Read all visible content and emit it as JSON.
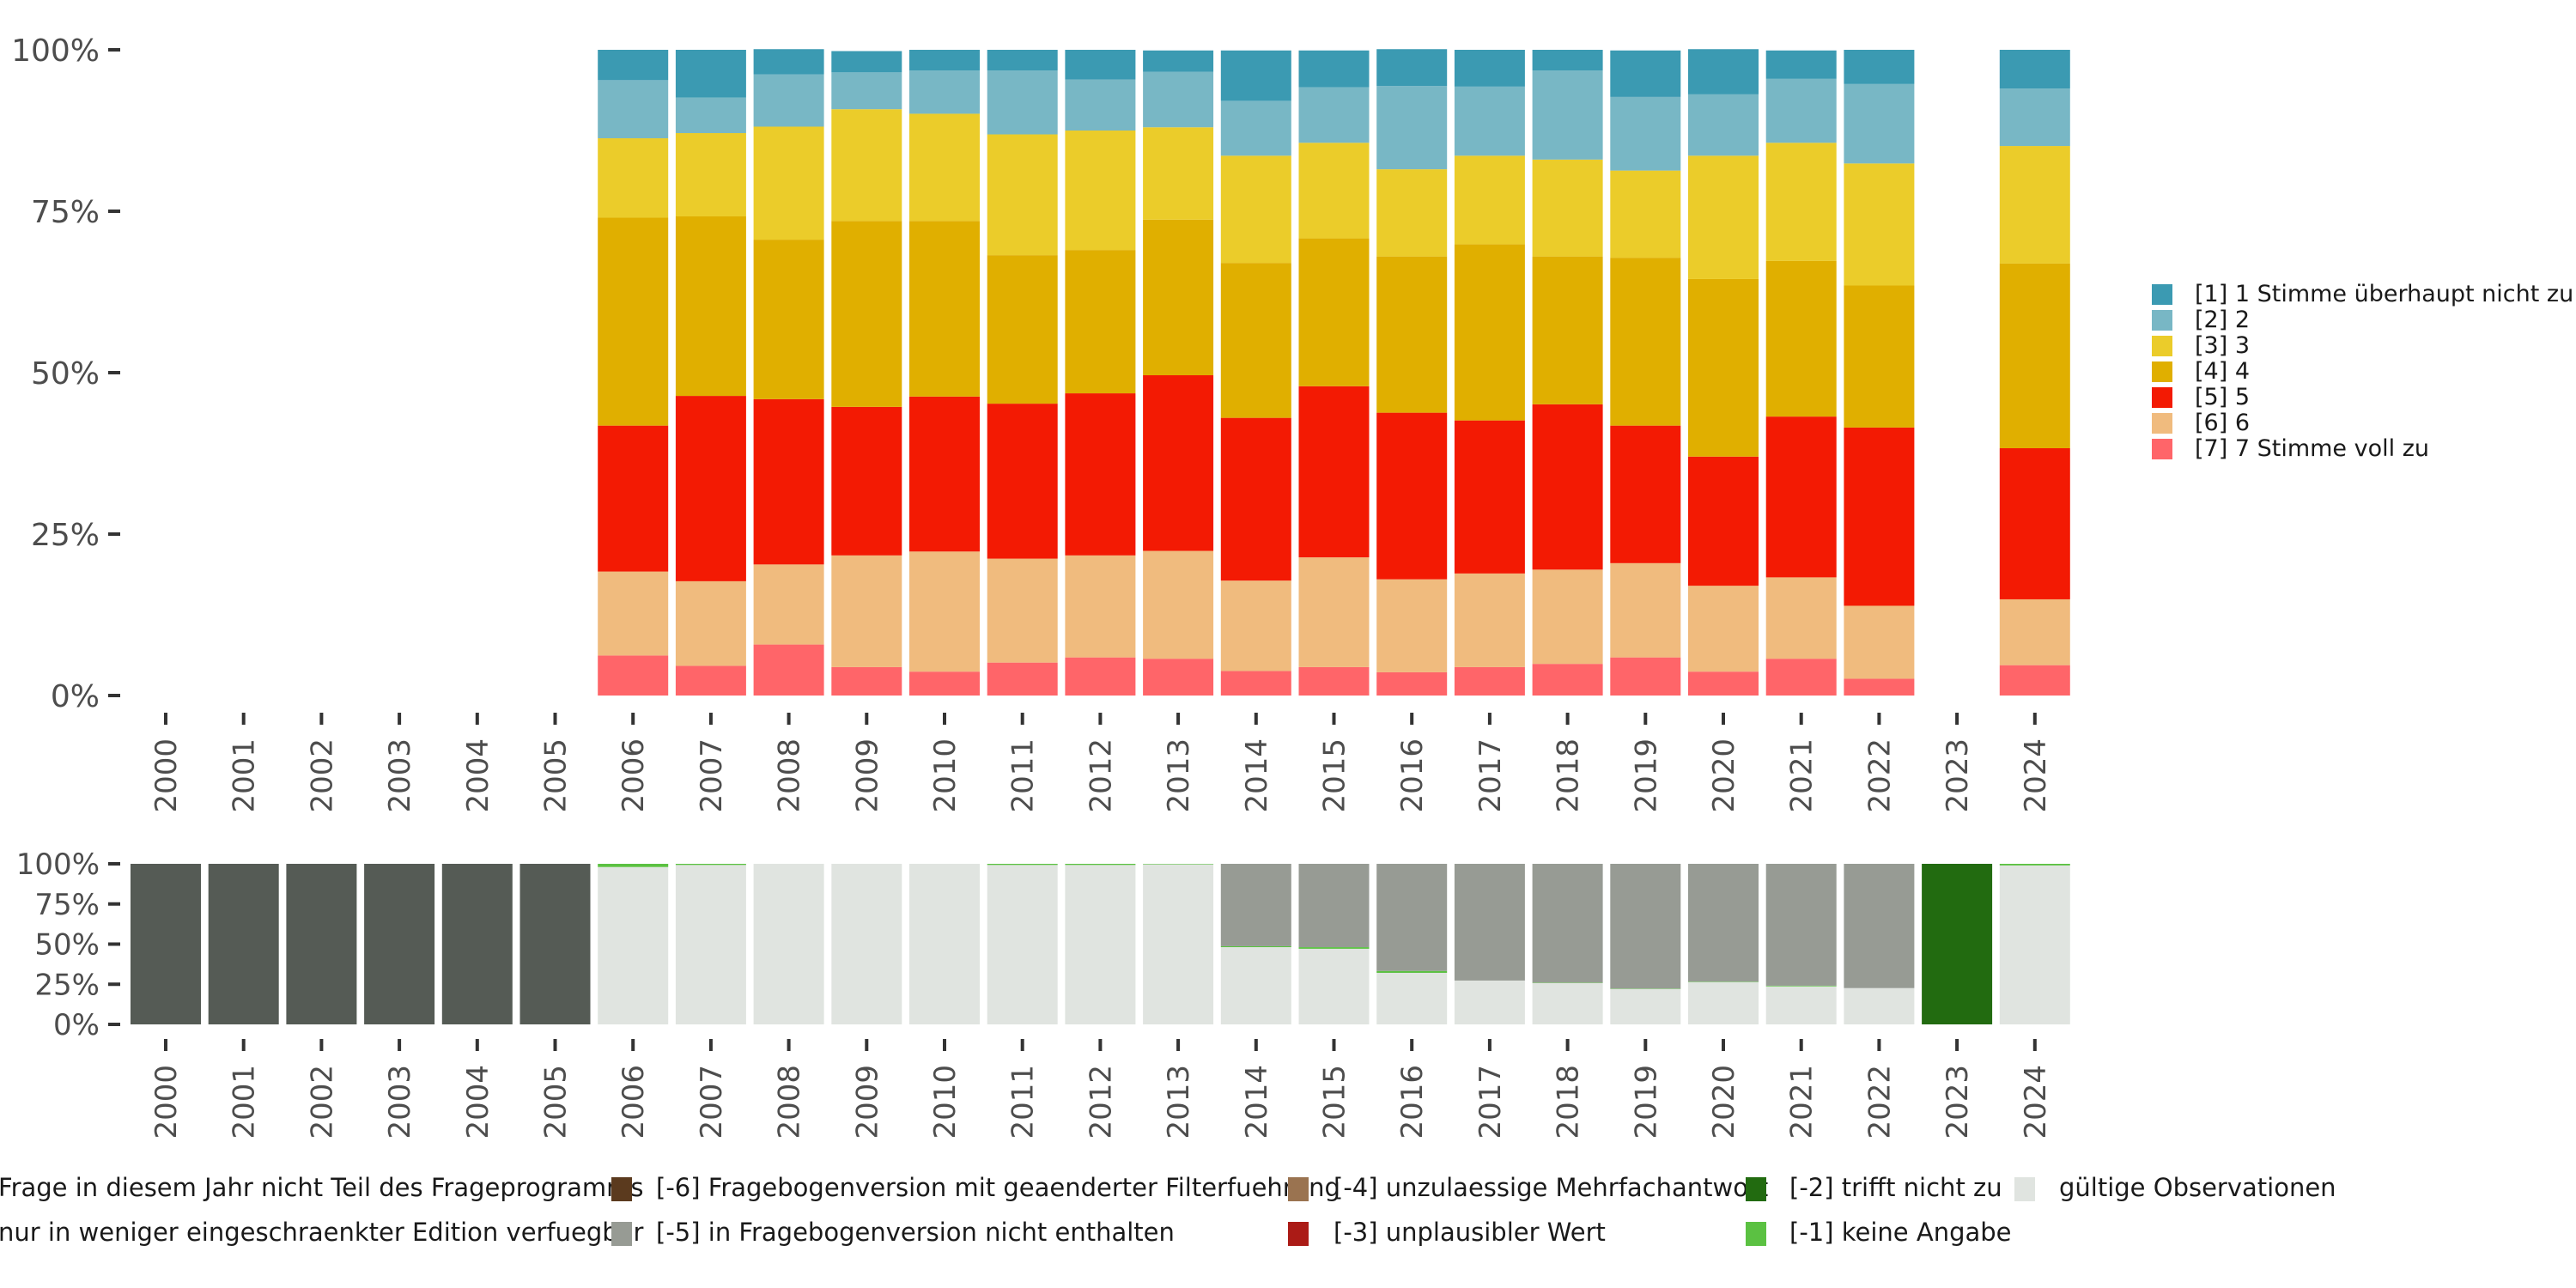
{
  "chart_data": [
    {
      "type": "bar",
      "stacked": true,
      "title": "",
      "xlabel": "",
      "ylabel": "",
      "ylim": [
        0,
        100
      ],
      "yticks": [
        "0%",
        "25%",
        "50%",
        "75%",
        "100%"
      ],
      "ytick_values": [
        0,
        25,
        50,
        75,
        100
      ],
      "categories": [
        "2000",
        "2001",
        "2002",
        "2003",
        "2004",
        "2005",
        "2006",
        "2007",
        "2008",
        "2009",
        "2010",
        "2011",
        "2012",
        "2013",
        "2014",
        "2015",
        "2016",
        "2017",
        "2018",
        "2019",
        "2020",
        "2021",
        "2022",
        "2023",
        "2024"
      ],
      "legend_position": "right",
      "series": [
        {
          "name": "[7] 7 Stimme voll zu",
          "color": "#FF6569",
          "values": [
            null,
            null,
            null,
            null,
            null,
            null,
            6.2,
            4.6,
            7.9,
            4.4,
            3.7,
            5.1,
            5.9,
            5.7,
            3.8,
            4.4,
            3.6,
            4.4,
            4.9,
            5.9,
            3.7,
            5.7,
            2.6,
            null,
            4.7
          ]
        },
        {
          "name": "[6] 6",
          "color": "#F0BB7E",
          "values": [
            null,
            null,
            null,
            null,
            null,
            null,
            13.0,
            13.1,
            12.4,
            17.3,
            18.6,
            16.1,
            15.8,
            16.7,
            14.0,
            17.0,
            14.4,
            14.5,
            14.6,
            14.6,
            13.3,
            12.6,
            11.3,
            null,
            10.2
          ]
        },
        {
          "name": "[5] 5",
          "color": "#F31A03",
          "values": [
            null,
            null,
            null,
            null,
            null,
            null,
            22.6,
            28.7,
            25.6,
            23.0,
            24.0,
            24.0,
            25.1,
            27.2,
            25.2,
            26.5,
            25.8,
            23.7,
            25.6,
            21.3,
            20.0,
            24.9,
            27.6,
            null,
            23.4
          ]
        },
        {
          "name": "[4] 4",
          "color": "#E0AF00",
          "values": [
            null,
            null,
            null,
            null,
            null,
            null,
            32.2,
            27.8,
            24.7,
            28.8,
            27.2,
            23.0,
            22.2,
            24.1,
            24.0,
            22.9,
            24.2,
            27.3,
            22.9,
            26.0,
            27.5,
            24.1,
            22.0,
            null,
            28.6
          ]
        },
        {
          "name": "[3] 3",
          "color": "#EBCC2A",
          "values": [
            null,
            null,
            null,
            null,
            null,
            null,
            12.3,
            12.9,
            17.5,
            17.3,
            16.6,
            18.7,
            18.5,
            14.3,
            16.6,
            14.8,
            13.5,
            13.7,
            15.0,
            13.5,
            19.1,
            18.3,
            18.9,
            null,
            18.2
          ]
        },
        {
          "name": "[2] 2",
          "color": "#78B7C5",
          "values": [
            null,
            null,
            null,
            null,
            null,
            null,
            9.0,
            5.5,
            8.1,
            5.7,
            6.7,
            9.9,
            7.9,
            8.6,
            8.5,
            8.6,
            12.9,
            10.7,
            13.8,
            11.4,
            9.5,
            9.9,
            12.3,
            null,
            8.9
          ]
        },
        {
          "name": "[1] 1 Stimme überhaupt nicht zu",
          "color": "#3B9AB2",
          "values": [
            null,
            null,
            null,
            null,
            null,
            null,
            4.7,
            7.4,
            3.9,
            3.3,
            3.2,
            3.2,
            4.6,
            3.3,
            7.8,
            5.7,
            5.7,
            5.7,
            3.2,
            7.2,
            7.0,
            4.4,
            5.3,
            null,
            6.0
          ]
        }
      ],
      "legend_order": [
        "[1] 1 Stimme überhaupt nicht zu",
        "[2] 2",
        "[3] 3",
        "[4] 4",
        "[5] 5",
        "[6] 6",
        "[7] 7 Stimme voll zu"
      ]
    },
    {
      "type": "bar",
      "stacked": true,
      "title": "",
      "xlabel": "",
      "ylabel": "",
      "ylim": [
        0,
        100
      ],
      "yticks": [
        "0%",
        "25%",
        "50%",
        "75%",
        "100%"
      ],
      "ytick_values": [
        0,
        25,
        50,
        75,
        100
      ],
      "categories": [
        "2000",
        "2001",
        "2002",
        "2003",
        "2004",
        "2005",
        "2006",
        "2007",
        "2008",
        "2009",
        "2010",
        "2011",
        "2012",
        "2013",
        "2014",
        "2015",
        "2016",
        "2017",
        "2018",
        "2019",
        "2020",
        "2021",
        "2022",
        "2023",
        "2024"
      ],
      "legend_position": "bottom",
      "series": [
        {
          "name": "gültige Observationen",
          "color": "#E0E4E0",
          "values": [
            0,
            0,
            0,
            0,
            0,
            0,
            98.0,
            99.3,
            100,
            100,
            100,
            99.3,
            99.3,
            99.7,
            48.1,
            47.1,
            32.1,
            27.3,
            25.8,
            22.1,
            26.3,
            23.7,
            22.6,
            0,
            99.0
          ]
        },
        {
          "name": "[-1] keine Angabe",
          "color": "#5BC142",
          "values": [
            0,
            0,
            0,
            0,
            0,
            0,
            2.0,
            0.7,
            0,
            0,
            0,
            0.7,
            0.7,
            0.3,
            0.6,
            1.0,
            1.2,
            0,
            0.2,
            0.2,
            0.3,
            0.4,
            0,
            0,
            1.0
          ]
        },
        {
          "name": "[-5] in Fragebogenversion nicht enthalten",
          "color": "#979B94",
          "values": [
            0,
            0,
            0,
            0,
            0,
            0,
            0,
            0,
            0,
            0,
            0,
            0,
            0,
            0,
            51.3,
            51.9,
            66.7,
            72.7,
            74.0,
            77.7,
            73.4,
            75.9,
            77.4,
            0,
            0
          ]
        },
        {
          "name": "[-2] trifft nicht zu",
          "color": "#226B10",
          "values": [
            0,
            0,
            0,
            0,
            0,
            0,
            0,
            0,
            0,
            0,
            0,
            0,
            0,
            0,
            0,
            0,
            0,
            0,
            0,
            0,
            0,
            0,
            0,
            100,
            0
          ]
        },
        {
          "name": "Frage in diesem Jahr nicht Teil des Frageprogramms",
          "color": "#555B55",
          "values": [
            100,
            100,
            100,
            100,
            100,
            100,
            0,
            0,
            0,
            0,
            0,
            0,
            0,
            0,
            0,
            0,
            0,
            0,
            0,
            0,
            0,
            0,
            0,
            0,
            0
          ]
        }
      ],
      "legend_items": [
        {
          "label": "Frage in diesem Jahr nicht Teil des Frageprogramms",
          "color": "#555B55"
        },
        {
          "label": "nur in weniger eingeschraenkter Edition verfuegbar",
          "color": "#979B94"
        },
        {
          "label": "[-6] Fragebogenversion mit geaenderter Filterfuehrung",
          "color": "#5B3A1E"
        },
        {
          "label": "[-5] in Fragebogenversion nicht enthalten",
          "color": "#979B94"
        },
        {
          "label": "[-4] unzulaessige Mehrfachantwort",
          "color": "#9A7350"
        },
        {
          "label": "[-3] unplausibler Wert",
          "color": "#AB1B16"
        },
        {
          "label": "[-2] trifft nicht zu",
          "color": "#226B10"
        },
        {
          "label": "[-1] keine Angabe",
          "color": "#5BC142"
        },
        {
          "label": "gültige Observationen",
          "color": "#E0E4E0"
        }
      ]
    }
  ]
}
